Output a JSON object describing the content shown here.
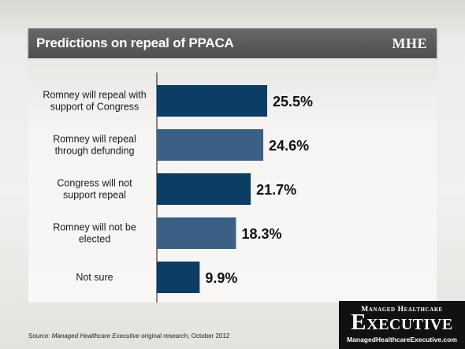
{
  "header": {
    "title": "Predictions on repeal of PPACA",
    "logo": "MHE"
  },
  "source": {
    "prefix": "Source: ",
    "italic": "Managed Healthcare Executive",
    "suffix": " original research, October 2012"
  },
  "brand": {
    "top": "Managed Healthcare",
    "main": "Executive",
    "url": "ManagedHealthcareExecutive.com"
  },
  "colors": {
    "bar_dark": "#0c3d64",
    "bar_light": "#3a6185",
    "axis": "#111111"
  },
  "chart_data": {
    "type": "bar",
    "orientation": "horizontal",
    "title": "Predictions on repeal of PPACA",
    "categories": [
      [
        "Romney will repeal with",
        "support of Congress"
      ],
      [
        "Romney will repeal",
        "through defunding"
      ],
      [
        "Congress will not",
        "support repeal"
      ],
      [
        "Romney will not be",
        "elected"
      ],
      [
        "Not sure"
      ]
    ],
    "values": [
      25.5,
      24.6,
      21.7,
      18.3,
      9.9
    ],
    "value_labels": [
      "25.5%",
      "24.6%",
      "21.7%",
      "18.3%",
      "9.9%"
    ],
    "xlim": [
      0,
      30
    ],
    "grid": false,
    "legend": "none"
  }
}
